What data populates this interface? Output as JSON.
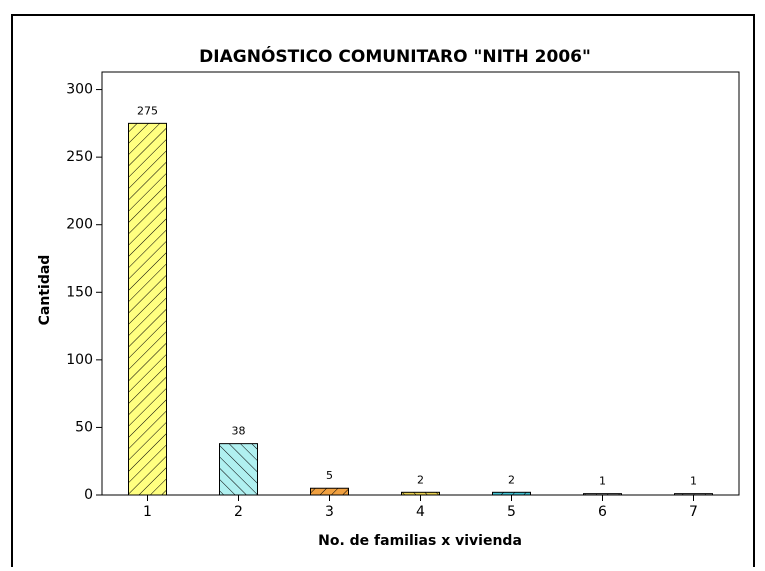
{
  "chart_data": {
    "type": "bar",
    "title": "DIAGNÓSTICO COMUNITARO \"NITH 2006\"",
    "x_label": "No. de familias x vivienda",
    "y_label": "Cantidad",
    "categories": [
      "1",
      "2",
      "3",
      "4",
      "5",
      "6",
      "7"
    ],
    "values": [
      275,
      38,
      5,
      2,
      2,
      1,
      1
    ],
    "colors": [
      "#ffff80",
      "#b0f0f0",
      "#f0a040",
      "#e8d050",
      "#40c0d0",
      "#c0c0c0",
      "#c0c0c0"
    ],
    "ylim": [
      0,
      313
    ],
    "yticks": [
      0,
      50,
      100,
      150,
      200,
      250,
      300
    ]
  }
}
